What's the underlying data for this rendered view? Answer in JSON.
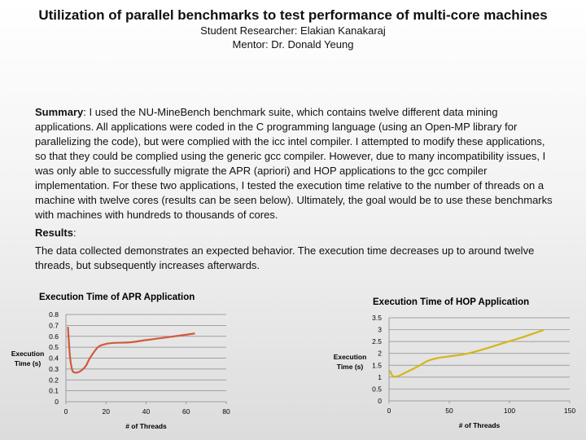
{
  "header": {
    "title": "Utilization of parallel benchmarks to test performance of multi-core machines",
    "researcher": "Student Researcher: Elakian Kanakaraj",
    "mentor": "Mentor: Dr. Donald Yeung"
  },
  "summary": {
    "label": "Summary",
    "text": ": I used the NU-MineBench benchmark suite, which contains twelve different data mining applications. All applications were coded in the C programming language (using an Open-MP library for parallelizing the code), but were complied with the icc intel compiler. I attempted to modify these applications, so that they could be complied using the generic gcc compiler. However, due to many incompatibility issues, I was only able to successfully migrate the APR (apriori)  and HOP applications to the gcc compiler implementation. For these two applications, I tested the execution time relative to the number of threads on a machine with twelve cores (results can be seen below). Ultimately, the goal would be to use these benchmarks with machines with hundreds to thousands of cores."
  },
  "results": {
    "label": "Results",
    "colon": ":",
    "text": "The data collected demonstrates an expected behavior. The execution time decreases up to around twelve threads, but subsequently increases afterwards."
  },
  "chart_data": [
    {
      "type": "line",
      "title": "Execution Time of APR Application",
      "xlabel": "# of Threads",
      "ylabel": [
        "Execution",
        "Time (s)"
      ],
      "xlim": [
        0,
        80
      ],
      "ylim": [
        0,
        0.8
      ],
      "xticks": [
        "0",
        "20",
        "40",
        "60",
        "80"
      ],
      "yticks": [
        "0",
        "0.1",
        "0.2",
        "0.3",
        "0.4",
        "0.5",
        "0.6",
        "0.7",
        "0.8"
      ],
      "color": "#d05a3c",
      "grid": true,
      "x": [
        1,
        2,
        3,
        4,
        6,
        8,
        10,
        12,
        16,
        20,
        24,
        32,
        40,
        48,
        56,
        64
      ],
      "y": [
        0.68,
        0.42,
        0.3,
        0.27,
        0.27,
        0.29,
        0.33,
        0.4,
        0.5,
        0.53,
        0.54,
        0.545,
        0.565,
        0.585,
        0.605,
        0.625
      ]
    },
    {
      "type": "line",
      "title": "Execution Time of HOP Application",
      "xlabel": "# of Threads",
      "ylabel": [
        "Execution",
        "Time (s)"
      ],
      "xlim": [
        0,
        150
      ],
      "ylim": [
        0,
        3.5
      ],
      "xticks": [
        "0",
        "50",
        "100",
        "150"
      ],
      "yticks": [
        "0",
        "0.5",
        "1",
        "1.5",
        "2",
        "2.5",
        "3",
        "3.5"
      ],
      "color": "#d4b61a",
      "grid": true,
      "x": [
        1,
        2,
        4,
        8,
        12,
        16,
        24,
        32,
        40,
        48,
        64,
        80,
        96,
        112,
        128
      ],
      "y": [
        1.25,
        1.12,
        1.02,
        1.05,
        1.15,
        1.25,
        1.45,
        1.68,
        1.8,
        1.86,
        1.98,
        2.2,
        2.45,
        2.7,
        2.98
      ]
    }
  ]
}
